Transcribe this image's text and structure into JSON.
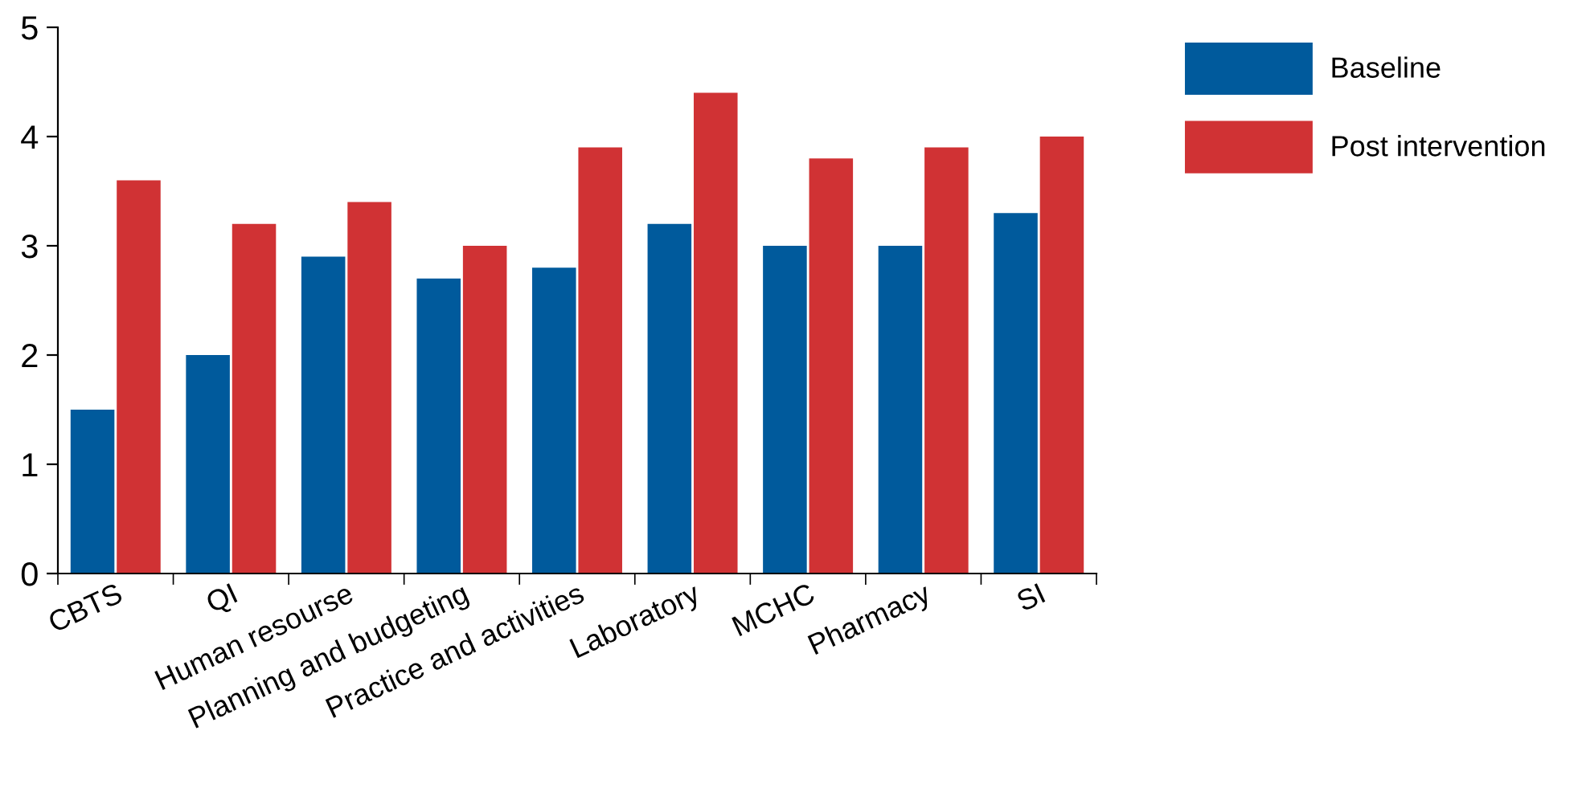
{
  "chart_data": {
    "type": "bar",
    "categories": [
      "CBTS",
      "QI",
      "Human resourse",
      "Planning and budgeting",
      "Practice and activities",
      "Laboratory",
      "MCHC",
      "Pharmacy",
      "SI"
    ],
    "series": [
      {
        "name": "Baseline",
        "color": "#005a9c",
        "values": [
          1.5,
          2.0,
          2.9,
          2.7,
          2.8,
          3.2,
          3.0,
          3.0,
          3.3
        ]
      },
      {
        "name": "Post intervention",
        "color": "#d03234",
        "values": [
          3.6,
          3.2,
          3.4,
          3.0,
          3.9,
          4.4,
          3.8,
          3.9,
          4.0
        ]
      }
    ],
    "ylim": [
      0,
      5
    ],
    "yticks": [
      0,
      1,
      2,
      3,
      4,
      5
    ],
    "grid": false,
    "legend": "top right"
  }
}
